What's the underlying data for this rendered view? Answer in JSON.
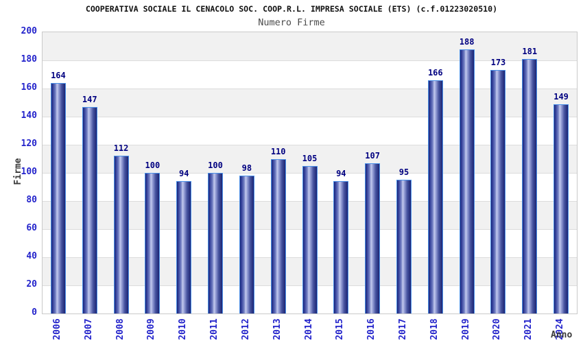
{
  "header": {
    "title": "COOPERATIVA SOCIALE IL CENACOLO SOC. COOP.R.L. IMPRESA SOCIALE (ETS) (c.f.01223020510)",
    "subtitle": "Numero Firme"
  },
  "chart_data": {
    "type": "bar",
    "title": "Numero Firme",
    "categories": [
      "2006",
      "2007",
      "2008",
      "2009",
      "2010",
      "2011",
      "2012",
      "2013",
      "2014",
      "2015",
      "2016",
      "2017",
      "2018",
      "2019",
      "2020",
      "2021",
      "2024"
    ],
    "values": [
      164,
      147,
      112,
      100,
      94,
      100,
      98,
      110,
      105,
      94,
      107,
      95,
      166,
      188,
      173,
      181,
      149
    ],
    "xlabel": "Anno",
    "ylabel": "Firme",
    "ylim": [
      0,
      200
    ],
    "ytick_step": 20,
    "yticks": [
      0,
      20,
      40,
      60,
      80,
      100,
      120,
      140,
      160,
      180,
      200
    ],
    "grid": "horizontal gridlines with alternating gray/white bands, top band gray",
    "legend": "none",
    "colors": {
      "bar_dark": "#1b2473",
      "bar_mid": "#7581c4",
      "bar_highlight": "#c3caee",
      "bar_border": "#4a90e8",
      "tick_label": "#2424cb",
      "value_label": "#000080",
      "axis_title": "#3a3a3a",
      "band_gray": "#f1f1f1",
      "band_white": "#ffffff",
      "grid_line": "#dcdcdc",
      "plot_border": "#c9c9c9"
    }
  }
}
